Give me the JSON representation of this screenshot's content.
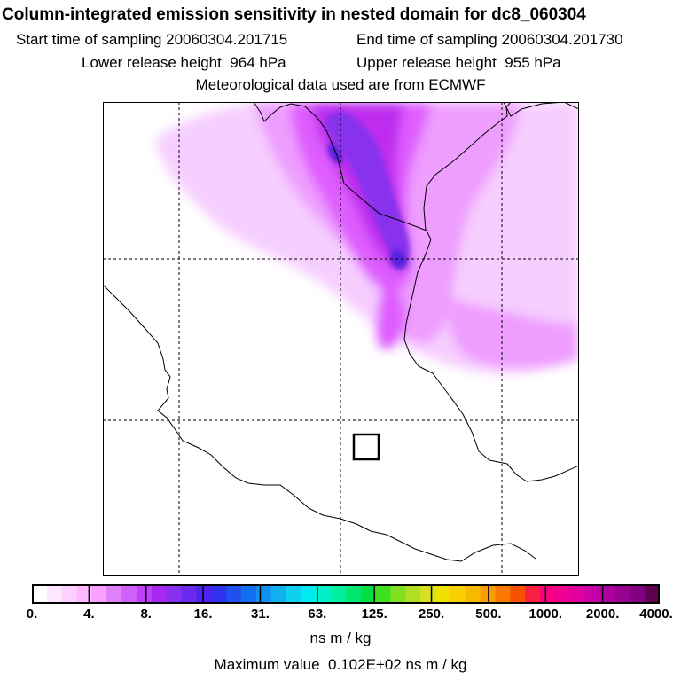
{
  "header": {
    "title": "Column-integrated emission sensitivity in nested domain for dc8_060304",
    "start_label": "Start time of sampling",
    "start_value": "20060304.201715",
    "end_label": "End time of sampling",
    "end_value": "20060304.201730",
    "lower_label": "Lower release height",
    "lower_value": "964 hPa",
    "upper_label": "Upper release height",
    "upper_value": "955 hPa",
    "met_source": "Meteorological data used are from ECMWF"
  },
  "map": {
    "plume_colors": {
      "faint": "#f6ccff",
      "light": "#ee99ff",
      "mid": "#dd55ff",
      "strong": "#bb22ee",
      "core": "#8833ee",
      "peak": "#5522dd"
    },
    "coastline_color": "#000000",
    "grid_color": "#000000",
    "release_box_color": "#000000"
  },
  "colorbar": {
    "colors": [
      "#ffffff",
      "#ffe8ff",
      "#ffd0ff",
      "#ffb8ff",
      "#f8a0ff",
      "#e080f8",
      "#d060f8",
      "#c040f8",
      "#a828f0",
      "#8830f0",
      "#6a2af0",
      "#4c24f0",
      "#3030f0",
      "#2050f0",
      "#1070f0",
      "#1090f0",
      "#10b0f0",
      "#10d0f0",
      "#00eaf0",
      "#00f0c8",
      "#00f0a0",
      "#00e870",
      "#00e040",
      "#40e020",
      "#80e020",
      "#b0e020",
      "#d8e020",
      "#f0e000",
      "#f8d000",
      "#f8b800",
      "#f89c00",
      "#f87800",
      "#f85000",
      "#f82040",
      "#f80080",
      "#f00090",
      "#e000a0",
      "#c800a8",
      "#b000a0",
      "#980090",
      "#800080",
      "#600050"
    ],
    "tick_labels": [
      "0.",
      "4.",
      "8.",
      "16.",
      "31.",
      "63.",
      "125.",
      "250.",
      "500.",
      "1000.",
      "2000.",
      "4000."
    ],
    "units": "ns m / kg"
  },
  "footer": {
    "max_label": "Maximum value",
    "max_value": "0.102E+02",
    "max_units": "ns m / kg"
  }
}
